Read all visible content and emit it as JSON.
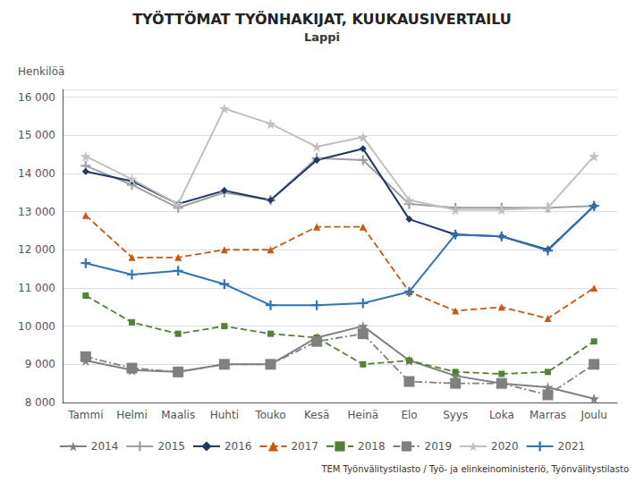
{
  "chart_data": {
    "type": "line",
    "title": "TYÖTTÖMAT TYÖNHAKIJAT, KUUKAUSIVERTAILU",
    "subtitle": "Lappi",
    "ylabel": "Henkilöä",
    "footer": "TEM Työnvälitystilasto / Työ- ja elinkeinoministeriö, Työnvälitystilasto",
    "categories": [
      "Tammi",
      "Helmi",
      "Maalis",
      "Huhti",
      "Touko",
      "Kesä",
      "Heinä",
      "Elo",
      "Syys",
      "Loka",
      "Marras",
      "Joulu"
    ],
    "ylim": [
      8000,
      16200
    ],
    "yticks": [
      {
        "value": 8000,
        "label": "8 000"
      },
      {
        "value": 9000,
        "label": "9 000"
      },
      {
        "value": 10000,
        "label": "10 000"
      },
      {
        "value": 11000,
        "label": "11 000"
      },
      {
        "value": 12000,
        "label": "12 000"
      },
      {
        "value": 13000,
        "label": "13 000"
      },
      {
        "value": 14000,
        "label": "14 000"
      },
      {
        "value": 15000,
        "label": "15 000"
      },
      {
        "value": 16000,
        "label": "16 000"
      }
    ],
    "grid": true,
    "legend": "bottom",
    "series": [
      {
        "name": "2014",
        "color": "#808080",
        "line_style": "solid",
        "marker": "star",
        "values": [
          9100,
          8850,
          8800,
          9000,
          9000,
          9700,
          10000,
          9100,
          8700,
          8500,
          8400,
          8100
        ]
      },
      {
        "name": "2015",
        "color": "#a0a0a0",
        "line_style": "solid",
        "marker": "plus",
        "values": [
          14200,
          13700,
          13100,
          13500,
          13300,
          14400,
          14350,
          13200,
          13100,
          13100,
          13100,
          13150
        ]
      },
      {
        "name": "2016",
        "color": "#1f3864",
        "line_style": "solid",
        "marker": "diamond",
        "values": [
          14050,
          13800,
          13200,
          13550,
          13300,
          14350,
          14650,
          12800,
          12400,
          12350,
          12000,
          13150
        ]
      },
      {
        "name": "2017",
        "color": "#c55a11",
        "line_style": "dashed",
        "marker": "triangle",
        "values": [
          12900,
          11800,
          11800,
          12000,
          12000,
          12600,
          12600,
          10900,
          10400,
          10500,
          10200,
          11000
        ]
      },
      {
        "name": "2018",
        "color": "#548235",
        "line_style": "dashed",
        "marker": "square",
        "values": [
          10800,
          10100,
          9800,
          10000,
          9800,
          9700,
          9000,
          9100,
          8800,
          8750,
          8800,
          9600
        ]
      },
      {
        "name": "2019",
        "color": "#808080",
        "line_style": "dashdot",
        "marker": "vline",
        "values": [
          9200,
          8900,
          8800,
          9000,
          9000,
          9600,
          9800,
          8550,
          8500,
          8500,
          8200,
          9000
        ]
      },
      {
        "name": "2020",
        "color": "#c0c0c0",
        "line_style": "solid",
        "marker": "star",
        "values": [
          14450,
          13850,
          13200,
          15700,
          15300,
          14700,
          14950,
          13300,
          13050,
          13050,
          13100,
          14450
        ]
      },
      {
        "name": "2021",
        "color": "#2e75b6",
        "line_style": "solid",
        "marker": "plus",
        "values": [
          11650,
          11350,
          11450,
          11100,
          10550,
          10550,
          10600,
          10900,
          12400,
          12350,
          11980,
          13150
        ]
      }
    ]
  }
}
